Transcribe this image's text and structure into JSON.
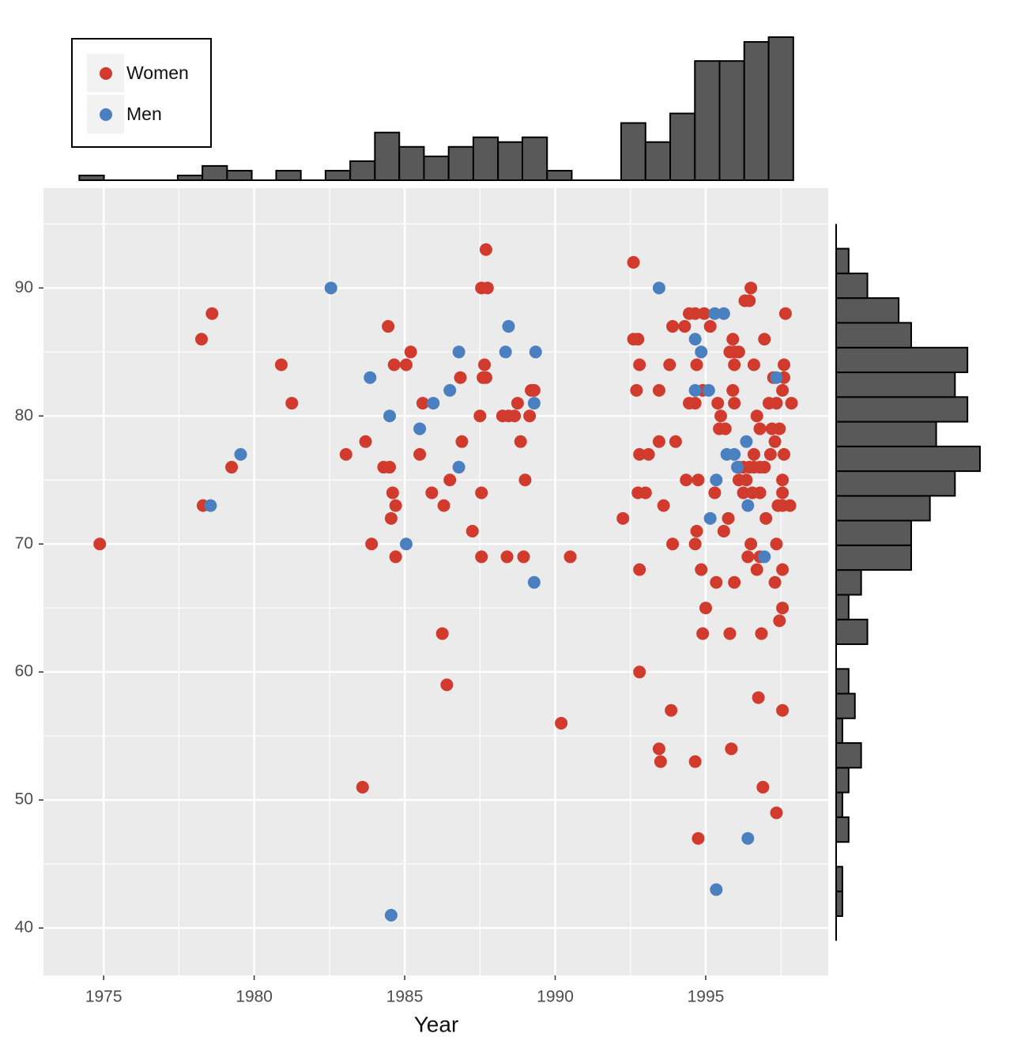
{
  "chart_data": [
    {
      "type": "scatter",
      "x_label": "Year",
      "xlim": [
        1973.0,
        1999.07
      ],
      "ylim": [
        36.3,
        97.8
      ],
      "xticks": [
        1975,
        1980,
        1985,
        1990,
        1995
      ],
      "yticks": [
        40,
        50,
        60,
        70,
        80,
        90
      ],
      "grid": true,
      "legend": "top-left",
      "series": [
        {
          "name": "Women",
          "color": "#d13b2e",
          "x": [
            1974.87,
            1978.25,
            1978.6,
            1978.3,
            1979.25,
            1980.9,
            1981.25,
            1983.05,
            1983.6,
            1983.7,
            1983.9,
            1984.3,
            1984.5,
            1984.45,
            1984.65,
            1985.05,
            1985.2,
            1984.6,
            1984.7,
            1984.55,
            1984.7,
            1985.6,
            1985.5,
            1985.9,
            1986.25,
            1986.4,
            1986.3,
            1986.5,
            1986.85,
            1986.9,
            1987.25,
            1987.5,
            1987.55,
            1987.55,
            1987.65,
            1987.6,
            1987.7,
            1987.55,
            1987.75,
            1987.7,
            1988.25,
            1988.45,
            1988.65,
            1988.4,
            1988.75,
            1988.85,
            1988.95,
            1989.0,
            1989.15,
            1989.2,
            1989.3,
            1990.2,
            1990.5,
            1992.25,
            1992.6,
            1992.6,
            1992.75,
            1992.8,
            1992.7,
            1992.8,
            1993.1,
            1992.75,
            1993.0,
            1992.8,
            1992.8,
            1993.45,
            1993.45,
            1993.6,
            1993.45,
            1993.5,
            1993.8,
            1993.9,
            1994.0,
            1993.9,
            1993.85,
            1994.3,
            1994.45,
            1994.65,
            1994.95,
            1994.35,
            1994.75,
            1994.45,
            1994.65,
            1994.7,
            1994.7,
            1994.65,
            1994.65,
            1994.75,
            1994.85,
            1995.0,
            1994.9,
            1994.9,
            1995.15,
            1995.3,
            1995.35,
            1995.4,
            1995.5,
            1995.45,
            1995.65,
            1995.6,
            1995.75,
            1995.8,
            1995.85,
            1995.95,
            1995.8,
            1995.95,
            1996.1,
            1995.9,
            1995.95,
            1995.9,
            1995.95,
            1996.1,
            1996.25,
            1996.45,
            1996.6,
            1996.8,
            1996.95,
            1996.1,
            1996.35,
            1996.25,
            1996.55,
            1996.8,
            1996.6,
            1996.3,
            1996.45,
            1996.5,
            1996.6,
            1996.5,
            1996.4,
            1996.7,
            1996.8,
            1996.85,
            1996.75,
            1996.9,
            1996.7,
            1996.8,
            1996.95,
            1997.0,
            1997.15,
            1997.1,
            1997.35,
            1997.2,
            1997.45,
            1997.3,
            1997.35,
            1997.3,
            1997.35,
            1997.4,
            1997.55,
            1997.8,
            1997.55,
            1997.45,
            1997.55,
            1997.55,
            1997.55,
            1997.55,
            1997.6,
            1997.65,
            1997.6,
            1997.6,
            1997.55,
            1997.85,
            1997.25
          ],
          "y": [
            70,
            86,
            88,
            73,
            76,
            84,
            81,
            77,
            51,
            78,
            70,
            76,
            76,
            87,
            84,
            84,
            85,
            74,
            73,
            72,
            69,
            81,
            77,
            74,
            63,
            59,
            73,
            75,
            83,
            78,
            71,
            80,
            74,
            69,
            84,
            83,
            83,
            90,
            90,
            93,
            80,
            80,
            80,
            69,
            81,
            78,
            69,
            75,
            80,
            82,
            82,
            56,
            69,
            72,
            92,
            86,
            86,
            84,
            82,
            77,
            77,
            74,
            74,
            68,
            60,
            82,
            78,
            73,
            54,
            53,
            84,
            87,
            78,
            70,
            57,
            87,
            88,
            88,
            88,
            75,
            75,
            81,
            81,
            84,
            71,
            70,
            53,
            47,
            68,
            65,
            63,
            82,
            87,
            74,
            67,
            81,
            80,
            79,
            79,
            71,
            72,
            63,
            54,
            67,
            85,
            85,
            85,
            86,
            84,
            82,
            81,
            76,
            76,
            76,
            76,
            76,
            76,
            75,
            75,
            74,
            74,
            74,
            77,
            89,
            89,
            90,
            84,
            70,
            69,
            68,
            69,
            63,
            58,
            51,
            80,
            79,
            86,
            72,
            77,
            81,
            81,
            79,
            79,
            78,
            70,
            67,
            49,
            73,
            73,
            73,
            68,
            64,
            65,
            57,
            74,
            75,
            77,
            88,
            84,
            83,
            82,
            81,
            83
          ]
        },
        {
          "name": "Men",
          "color": "#4b80c0",
          "x": [
            1982.55,
            1979.55,
            1978.55,
            1983.85,
            1984.5,
            1984.55,
            1985.05,
            1985.5,
            1985.95,
            1986.5,
            1986.8,
            1986.8,
            1988.45,
            1988.35,
            1989.35,
            1989.3,
            1989.3,
            1993.45,
            1994.65,
            1994.85,
            1994.65,
            1995.1,
            1995.3,
            1995.6,
            1995.35,
            1995.15,
            1995.35,
            1996.35,
            1995.7,
            1995.95,
            1996.05,
            1996.4,
            1996.95,
            1996.4,
            1997.35
          ],
          "y": [
            90,
            77,
            73,
            83,
            80,
            41,
            70,
            79,
            81,
            82,
            85,
            76,
            87,
            85,
            85,
            81,
            67,
            90,
            86,
            85,
            82,
            82,
            88,
            88,
            75,
            72,
            43,
            78,
            77,
            77,
            76,
            73,
            69,
            47,
            83
          ]
        }
      ]
    },
    {
      "type": "histogram",
      "color": "#595959",
      "ylim": [
        0,
        30
      ],
      "bins": [
        1974.19,
        1975.01,
        1975.83,
        1976.64,
        1977.46,
        1978.28,
        1979.1,
        1979.92,
        1980.73,
        1981.55,
        1982.37,
        1983.19,
        1984.01,
        1984.82,
        1985.64,
        1986.46,
        1987.28,
        1988.1,
        1988.91,
        1989.73,
        1990.55,
        1991.37,
        1992.19,
        1993.0,
        1993.82,
        1994.64,
        1995.46,
        1996.28,
        1997.09,
        1997.91
      ],
      "counts": [
        1,
        0,
        0,
        0,
        1,
        3,
        2,
        0,
        2,
        0,
        2,
        4,
        10,
        7,
        5,
        7,
        9,
        8,
        9,
        2,
        0,
        0,
        12,
        8,
        14,
        25,
        25,
        29,
        30
      ]
    },
    {
      "type": "histogram-horizontal",
      "color": "#595959",
      "xlim": [
        0,
        23
      ],
      "bins": [
        39.0,
        40.93,
        42.86,
        44.79,
        46.72,
        48.66,
        50.59,
        52.52,
        54.45,
        56.38,
        58.31,
        60.24,
        62.17,
        64.1,
        66.03,
        67.97,
        69.9,
        71.83,
        73.76,
        75.69,
        77.62,
        79.55,
        81.48,
        83.41,
        85.34,
        87.28,
        89.21,
        91.14,
        93.07,
        95.0
      ],
      "counts": [
        0,
        1,
        1,
        0,
        2,
        1,
        2,
        4,
        1,
        3,
        2,
        0,
        5,
        2,
        4,
        12,
        12,
        15,
        19,
        23,
        16,
        21,
        19,
        21,
        12,
        10,
        5,
        2,
        0
      ]
    }
  ]
}
